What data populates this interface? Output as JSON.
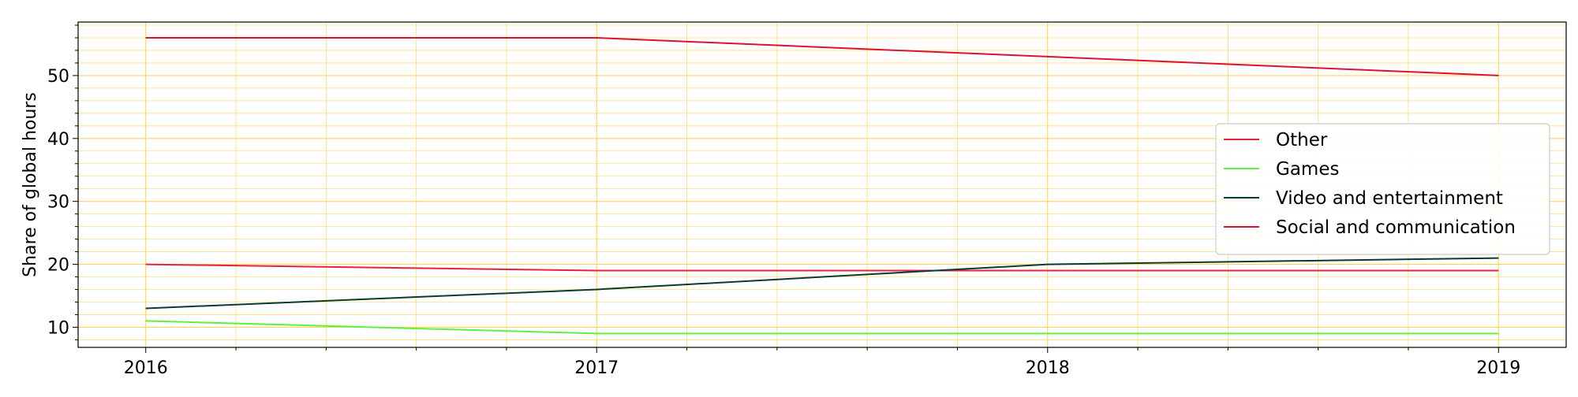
{
  "chart_data": {
    "type": "line",
    "title": "",
    "xlabel": "",
    "ylabel": "Share of global hours",
    "x": [
      2016,
      2017,
      2018,
      2019
    ],
    "xticks": [
      2016,
      2017,
      2018,
      2019
    ],
    "xlim": [
      2015.85,
      2019.15
    ],
    "yticks": [
      10,
      20,
      30,
      40,
      50
    ],
    "ylim": [
      6.8,
      58.5
    ],
    "grid": true,
    "grid_color": "#ffd24d",
    "legend_position": "center-right",
    "series": [
      {
        "name": "Other",
        "values": [
          20,
          19,
          19,
          19
        ],
        "color": "#e8213e"
      },
      {
        "name": "Games",
        "values": [
          11,
          9,
          9,
          9
        ],
        "color": "#5cf23e"
      },
      {
        "name": "Video and entertainment",
        "values": [
          13,
          16,
          20,
          21
        ],
        "color": "#0b3b2e"
      },
      {
        "name": "Social and communication",
        "values": [
          56,
          56,
          53,
          50
        ],
        "color": "#e0102f"
      }
    ]
  }
}
